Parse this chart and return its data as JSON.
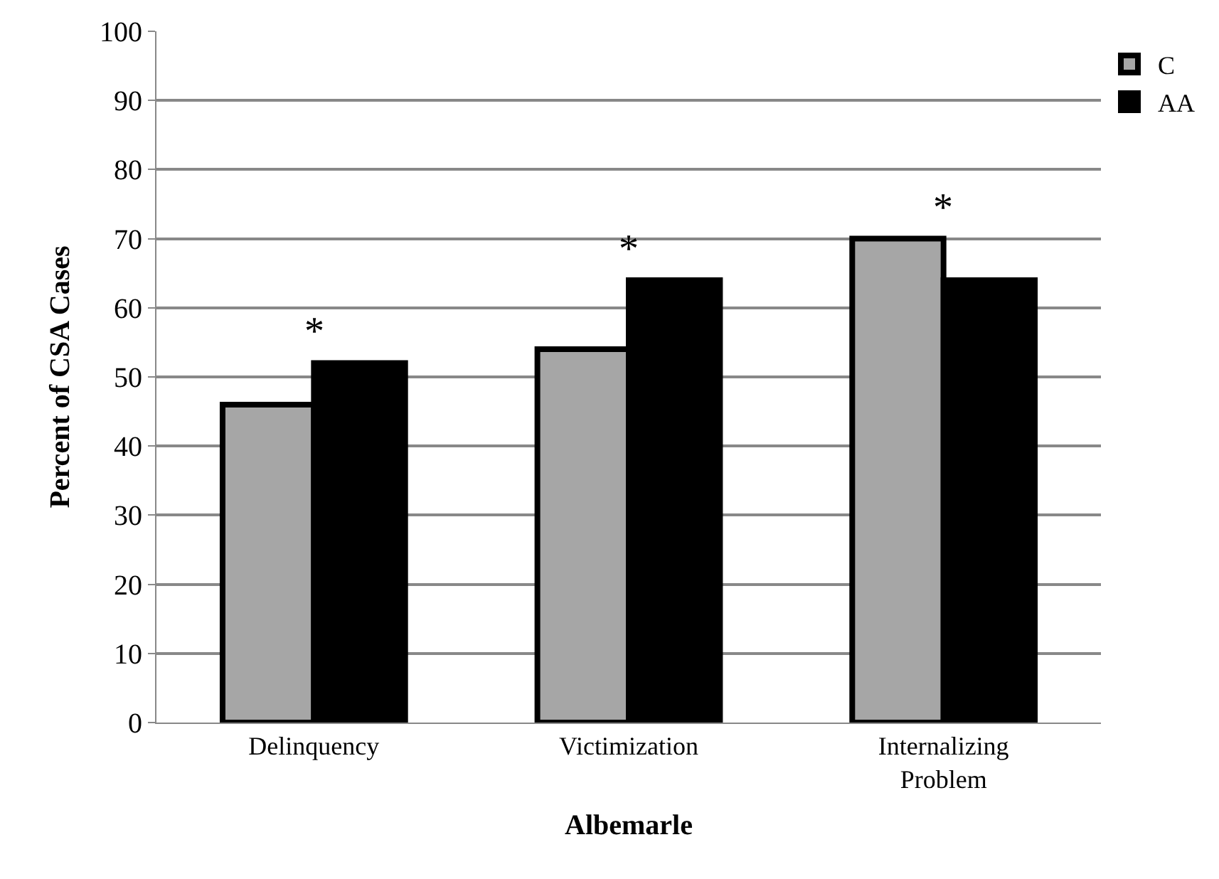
{
  "chart_data": {
    "type": "bar",
    "xlabel": "Albemarle",
    "ylabel": "Percent of CSA Cases",
    "categories": [
      "Delinquency",
      "Victimization",
      "Internalizing Problem"
    ],
    "series": [
      {
        "name": "C",
        "color": "#a6a6a6",
        "values": [
          46,
          54,
          70
        ]
      },
      {
        "name": "AA",
        "color": "#000000",
        "values": [
          52,
          64,
          64
        ]
      }
    ],
    "ylim": [
      0,
      100
    ],
    "yticks": [
      0,
      10,
      20,
      30,
      40,
      50,
      60,
      70,
      80,
      90,
      100
    ],
    "grid": "y",
    "legend": "top right",
    "annotations": [
      "*",
      "*",
      "*"
    ]
  }
}
